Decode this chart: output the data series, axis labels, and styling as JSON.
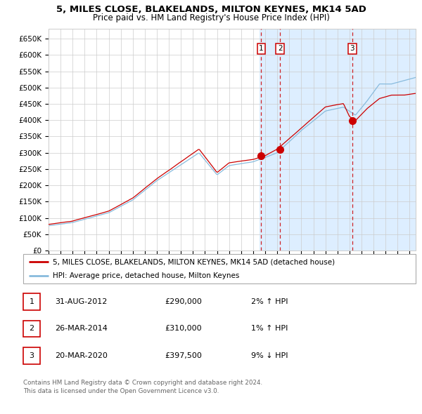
{
  "title": "5, MILES CLOSE, BLAKELANDS, MILTON KEYNES, MK14 5AD",
  "subtitle": "Price paid vs. HM Land Registry's House Price Index (HPI)",
  "legend_red": "5, MILES CLOSE, BLAKELANDS, MILTON KEYNES, MK14 5AD (detached house)",
  "legend_blue": "HPI: Average price, detached house, Milton Keynes",
  "footer1": "Contains HM Land Registry data © Crown copyright and database right 2024.",
  "footer2": "This data is licensed under the Open Government Licence v3.0.",
  "transactions": [
    {
      "num": 1,
      "date": "31-AUG-2012",
      "price": 290000,
      "pct": "2%",
      "dir": "↑",
      "x_year": 2012.67
    },
    {
      "num": 2,
      "date": "26-MAR-2014",
      "price": 310000,
      "pct": "1%",
      "dir": "↑",
      "x_year": 2014.23
    },
    {
      "num": 3,
      "date": "20-MAR-2020",
      "price": 397500,
      "pct": "9%",
      "dir": "↓",
      "x_year": 2020.22
    }
  ],
  "ylim": [
    0,
    680000
  ],
  "xlim_start": 1995.0,
  "xlim_end": 2025.5,
  "yticks": [
    0,
    50000,
    100000,
    150000,
    200000,
    250000,
    300000,
    350000,
    400000,
    450000,
    500000,
    550000,
    600000,
    650000
  ],
  "background_color": "#ffffff",
  "grid_color": "#cccccc",
  "red_line_color": "#cc0000",
  "blue_line_color": "#88bbdd",
  "shaded_region_color": "#ddeeff",
  "dashed_line_color": "#cc0000",
  "key_years_red": [
    1995,
    1997,
    2000,
    2002,
    2004,
    2007.5,
    2009.0,
    2010,
    2012,
    2013,
    2014,
    2016,
    2018,
    2019.5,
    2020.0,
    2020.5,
    2021.5,
    2022.5,
    2023.5,
    2024.5,
    2025.5
  ],
  "key_vals_red": [
    80000,
    90000,
    120000,
    160000,
    220000,
    310000,
    238000,
    268000,
    278000,
    290000,
    310000,
    375000,
    440000,
    450000,
    410000,
    397500,
    435000,
    465000,
    475000,
    475000,
    480000
  ],
  "key_years_blue": [
    1995,
    1997,
    2000,
    2002,
    2004,
    2007.5,
    2009.0,
    2010,
    2012,
    2013,
    2014,
    2016,
    2018,
    2019.5,
    2020.5,
    2021.5,
    2022.5,
    2023.5,
    2024.5,
    2025.5
  ],
  "key_vals_blue": [
    76000,
    86000,
    116000,
    155000,
    215000,
    300000,
    232000,
    260000,
    272000,
    285000,
    300000,
    368000,
    428000,
    440000,
    415000,
    460000,
    510000,
    510000,
    520000,
    530000
  ]
}
